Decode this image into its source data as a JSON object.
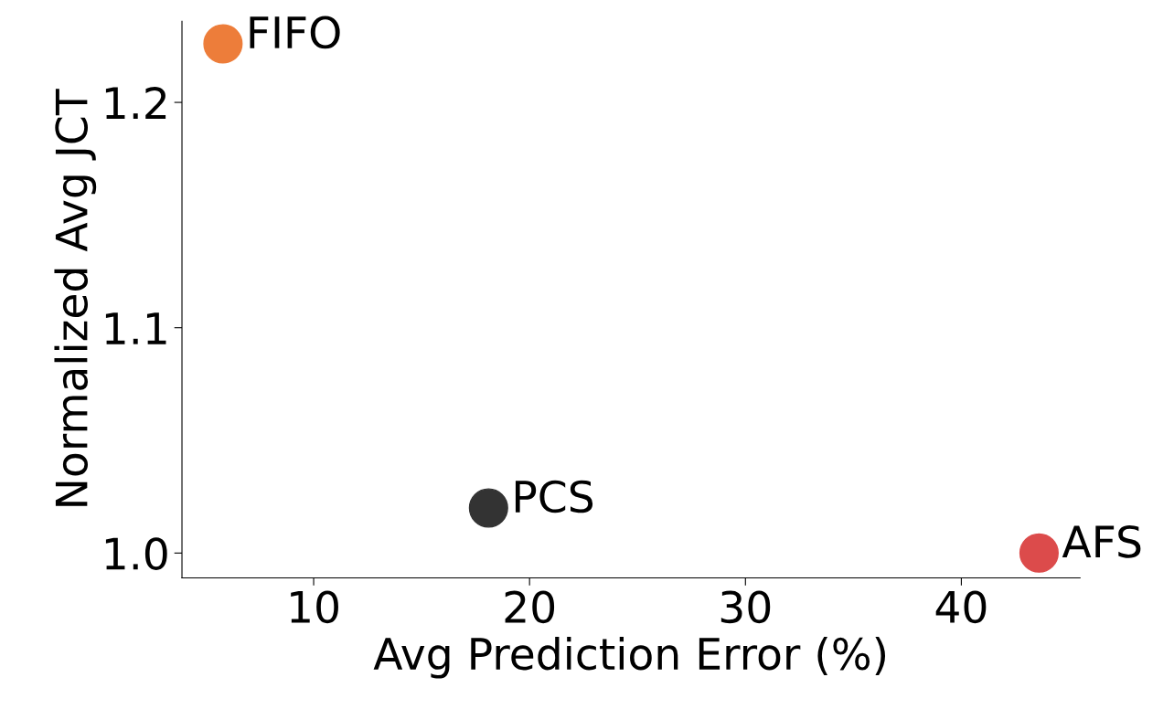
{
  "chart_data": {
    "type": "scatter",
    "xlabel": "Avg Prediction Error (%)",
    "ylabel": "Normalized Avg JCT",
    "series": [
      {
        "name": "FIFO",
        "color": "#ed7d3a",
        "x": [
          5.8
        ],
        "values": [
          1.226
        ]
      },
      {
        "name": "PCS",
        "color": "#333333",
        "x": [
          18.1
        ],
        "values": [
          1.02
        ]
      },
      {
        "name": "AFS",
        "color": "#dc4b4b",
        "x": [
          43.6
        ],
        "values": [
          1.0
        ]
      }
    ],
    "xlim": [
      3.9,
      45.5
    ],
    "xticks": [
      10,
      20,
      30,
      40
    ],
    "ylim": [
      0.989,
      1.236
    ],
    "yticks": [
      {
        "value": 1.0,
        "label": "1.0"
      },
      1.1,
      1.2
    ],
    "marker": "circle",
    "grid": false,
    "legend": false
  }
}
